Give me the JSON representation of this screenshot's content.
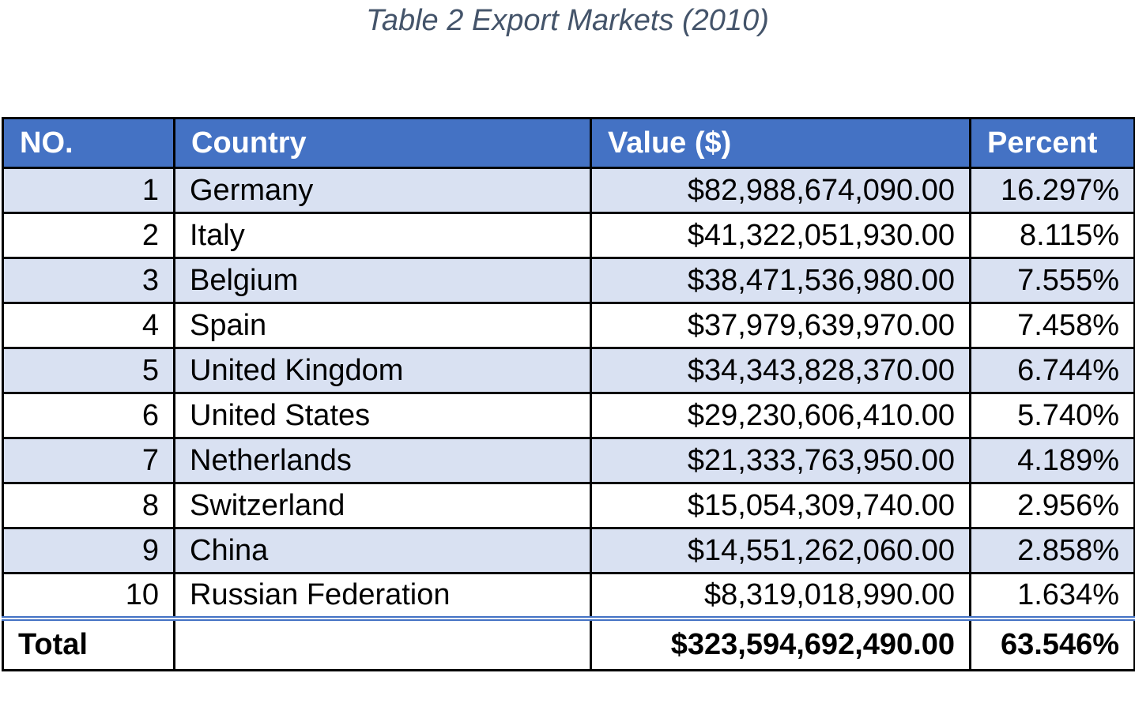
{
  "caption": "Table 2 Export Markets (2010)",
  "table": {
    "headers": [
      "NO.",
      "Country",
      "Value ($)",
      "Percent"
    ],
    "rows": [
      {
        "no": "1",
        "country": "Germany",
        "value": "$82,988,674,090.00",
        "percent": "16.297%"
      },
      {
        "no": "2",
        "country": "Italy",
        "value": "$41,322,051,930.00",
        "percent": "8.115%"
      },
      {
        "no": "3",
        "country": "Belgium",
        "value": "$38,471,536,980.00",
        "percent": "7.555%"
      },
      {
        "no": "4",
        "country": "Spain",
        "value": "$37,979,639,970.00",
        "percent": "7.458%"
      },
      {
        "no": "5",
        "country": "United Kingdom",
        "value": "$34,343,828,370.00",
        "percent": "6.744%"
      },
      {
        "no": "6",
        "country": "United States",
        "value": "$29,230,606,410.00",
        "percent": "5.740%"
      },
      {
        "no": "7",
        "country": "Netherlands",
        "value": "$21,333,763,950.00",
        "percent": "4.189%"
      },
      {
        "no": "8",
        "country": "Switzerland",
        "value": "$15,054,309,740.00",
        "percent": "2.956%"
      },
      {
        "no": "9",
        "country": "China",
        "value": "$14,551,262,060.00",
        "percent": "2.858%"
      },
      {
        "no": "10",
        "country": "Russian Federation",
        "value": "$8,319,018,990.00",
        "percent": "1.634%"
      }
    ],
    "total": {
      "label": "Total",
      "country": "",
      "value": "$323,594,692,490.00",
      "percent": "63.546%"
    }
  },
  "colors": {
    "header_bg": "#4472c4",
    "band_bg": "#d9e1f2",
    "caption_text": "#44546a"
  }
}
